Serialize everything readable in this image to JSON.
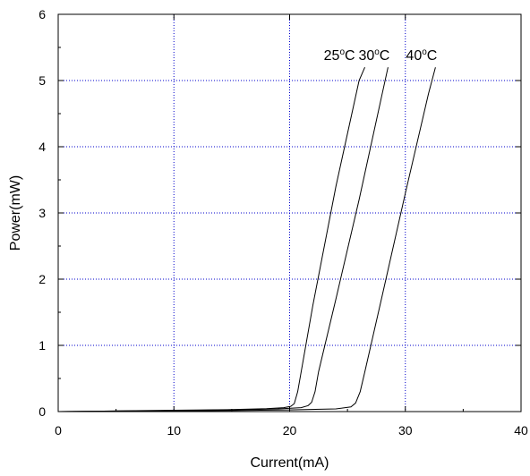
{
  "chart_data": {
    "type": "line",
    "title": "",
    "xlabel": "Current(mA)",
    "ylabel": "Power(mW)",
    "xlim": [
      0,
      40
    ],
    "ylim": [
      0,
      6
    ],
    "xticks": [
      0,
      10,
      20,
      30,
      40
    ],
    "yticks": [
      0,
      1,
      2,
      3,
      4,
      5,
      6
    ],
    "grid": true,
    "grid_color": "#0000cc",
    "line_color": "#000000",
    "annotations": [
      {
        "num": "25",
        "sup": "o",
        "unit": "C",
        "x": 25.5,
        "y": 5.2
      },
      {
        "num": "30",
        "sup": "o",
        "unit": "C",
        "x": 28.5,
        "y": 5.2
      },
      {
        "num": "40",
        "sup": "o",
        "unit": "C",
        "x": 32.6,
        "y": 5.2
      }
    ],
    "series": [
      {
        "x": [
          0,
          5,
          10,
          15,
          18,
          19.5,
          20.1,
          20.4,
          20.7,
          21.0,
          22.0,
          24.0,
          26.0,
          26.5
        ],
        "y": [
          0,
          0.01,
          0.02,
          0.03,
          0.045,
          0.06,
          0.08,
          0.12,
          0.3,
          0.6,
          1.6,
          3.4,
          5.0,
          5.2
        ]
      },
      {
        "x": [
          0,
          5,
          10,
          15,
          19,
          21,
          21.6,
          21.9,
          22.2,
          22.5,
          24.0,
          26.0,
          28.0,
          28.5
        ],
        "y": [
          0,
          0.008,
          0.015,
          0.025,
          0.04,
          0.06,
          0.09,
          0.14,
          0.3,
          0.6,
          1.7,
          3.2,
          4.8,
          5.2
        ]
      },
      {
        "x": [
          0,
          5,
          10,
          15,
          20,
          24,
          25.3,
          25.7,
          26.1,
          26.5,
          28.0,
          30.0,
          32.0,
          32.6
        ],
        "y": [
          0,
          0.005,
          0.01,
          0.015,
          0.025,
          0.04,
          0.07,
          0.13,
          0.3,
          0.6,
          1.75,
          3.3,
          4.8,
          5.2
        ]
      }
    ]
  }
}
